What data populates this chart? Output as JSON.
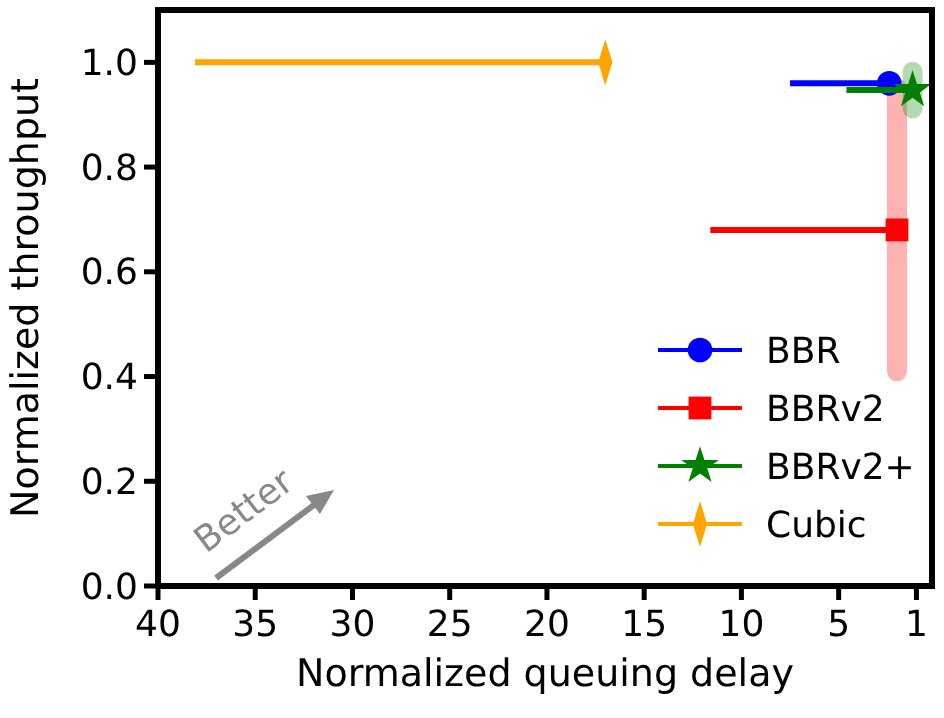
{
  "chart_data": {
    "type": "scatter",
    "xlabel": "Normalized queuing delay",
    "ylabel": "Normalized throughput",
    "xlim": [
      40,
      0.2
    ],
    "xticks": [
      40,
      35,
      30,
      25,
      20,
      15,
      10,
      5,
      1
    ],
    "ylim": [
      0,
      1.1
    ],
    "yticks": [
      {
        "value": 0,
        "label": "0.0"
      },
      {
        "value": 0.2,
        "label": "0.2"
      },
      {
        "value": 0.4,
        "label": "0.4"
      },
      {
        "value": 0.6,
        "label": "0.6"
      },
      {
        "value": 0.8,
        "label": "0.8"
      },
      {
        "value": 1,
        "label": "1.0"
      }
    ],
    "grid": false,
    "legend": "bottom right",
    "annotations": [
      "Better"
    ],
    "series": [
      {
        "name": "BBR",
        "color": "#0000ff",
        "marker": "circle",
        "x": [
          2.4
        ],
        "values": [
          0.96
        ],
        "xerrors": [
          [
            7.5,
            2.4
          ]
        ]
      },
      {
        "name": "BBRv2",
        "color": "#ff0000",
        "marker": "square",
        "x": [
          2.0
        ],
        "values": [
          0.68
        ],
        "xerrors": [
          [
            11.6,
            2.0
          ]
        ],
        "errors": [
          0.27
        ]
      },
      {
        "name": "BBRv2+",
        "color": "#008000",
        "marker": "star",
        "x": [
          1.2
        ],
        "values": [
          0.947
        ],
        "xerrors": [
          [
            4.6,
            1.2
          ]
        ],
        "errors": [
          0.035
        ]
      },
      {
        "name": "Cubic",
        "color": "#ffa500",
        "marker": "diamond",
        "x": [
          17.0
        ],
        "values": [
          1.0
        ],
        "xerrors": [
          [
            38.1,
            17.0
          ]
        ]
      }
    ]
  }
}
